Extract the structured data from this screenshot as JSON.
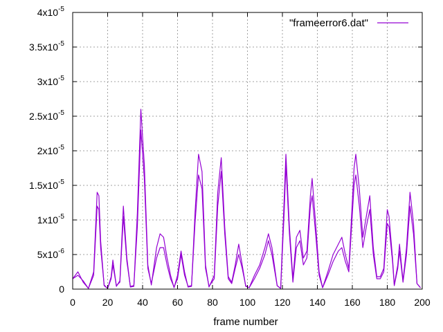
{
  "chart_data": {
    "type": "line",
    "xlabel": "frame number",
    "ylabel": "",
    "xlim": [
      0,
      200
    ],
    "ylim": [
      0,
      4e-05
    ],
    "x_ticks": [
      0,
      20,
      40,
      60,
      80,
      100,
      120,
      140,
      160,
      180,
      200
    ],
    "x_tick_labels": [
      "0",
      "20",
      "40",
      "60",
      "80",
      "100",
      "120",
      "140",
      "160",
      "180",
      "200"
    ],
    "y_ticks": [
      0,
      5e-06,
      1e-05,
      1.5e-05,
      2e-05,
      2.5e-05,
      3e-05,
      3.5e-05,
      4e-05
    ],
    "y_tick_labels": [
      {
        "mant": "0",
        "exp": ""
      },
      {
        "mant": "5x10",
        "exp": "-6"
      },
      {
        "mant": "1x10",
        "exp": "-5"
      },
      {
        "mant": "1.5x10",
        "exp": "-5"
      },
      {
        "mant": "2x10",
        "exp": "-5"
      },
      {
        "mant": "2.5x10",
        "exp": "-5"
      },
      {
        "mant": "3x10",
        "exp": "-5"
      },
      {
        "mant": "3.5x10",
        "exp": "-5"
      },
      {
        "mant": "4x10",
        "exp": "-5"
      }
    ],
    "grid": true,
    "legend_position": "top-right",
    "series": [
      {
        "name": "\"frameerror6.dat\"",
        "color": "#9400d3",
        "points": [
          [
            0,
            1.5e-06
          ],
          [
            3,
            2e-06
          ],
          [
            6,
            1.2e-06
          ],
          [
            9,
            1e-07
          ],
          [
            12,
            2e-06
          ],
          [
            14,
            1.2e-05
          ],
          [
            15,
            1.15e-05
          ],
          [
            16,
            6e-06
          ],
          [
            18,
            6e-07
          ],
          [
            20,
            1e-07
          ],
          [
            22,
            1.5e-06
          ],
          [
            23,
            3.5e-06
          ],
          [
            24,
            2e-06
          ],
          [
            25,
            5e-07
          ],
          [
            27,
            1e-06
          ],
          [
            29,
            1.05e-05
          ],
          [
            31,
            4e-06
          ],
          [
            33,
            4e-07
          ],
          [
            35,
            5e-07
          ],
          [
            37,
            9e-06
          ],
          [
            39,
            2.3e-05
          ],
          [
            41,
            1.6e-05
          ],
          [
            43,
            3e-06
          ],
          [
            45,
            8e-07
          ],
          [
            48,
            4.5e-06
          ],
          [
            50,
            6e-06
          ],
          [
            52,
            6e-06
          ],
          [
            54,
            3.5e-06
          ],
          [
            56,
            1.5e-06
          ],
          [
            58,
            3e-07
          ],
          [
            60,
            1.5e-06
          ],
          [
            62,
            5e-06
          ],
          [
            64,
            2e-06
          ],
          [
            66,
            4e-07
          ],
          [
            68,
            5e-07
          ],
          [
            70,
            9.5e-06
          ],
          [
            72,
            1.65e-05
          ],
          [
            74,
            1.45e-05
          ],
          [
            76,
            3e-06
          ],
          [
            78,
            4e-07
          ],
          [
            81,
            1.5e-06
          ],
          [
            83,
            1.2e-05
          ],
          [
            85,
            1.7e-05
          ],
          [
            87,
            8e-06
          ],
          [
            89,
            1.5e-06
          ],
          [
            91,
            8e-07
          ],
          [
            93,
            3e-06
          ],
          [
            95,
            5e-06
          ],
          [
            97,
            3e-06
          ],
          [
            99,
            5e-07
          ],
          [
            101,
            2e-07
          ],
          [
            104,
            1.5e-06
          ],
          [
            107,
            3e-06
          ],
          [
            110,
            5e-06
          ],
          [
            112,
            7e-06
          ],
          [
            114,
            5e-06
          ],
          [
            117,
            5e-07
          ],
          [
            119,
            1e-07
          ],
          [
            121,
            1.1e-05
          ],
          [
            122,
            1.8e-05
          ],
          [
            124,
            8e-06
          ],
          [
            126,
            1e-06
          ],
          [
            128,
            6e-06
          ],
          [
            130,
            7e-06
          ],
          [
            132,
            3.5e-06
          ],
          [
            134,
            4.5e-06
          ],
          [
            136,
            1.2e-05
          ],
          [
            137,
            1.35e-05
          ],
          [
            139,
            8e-06
          ],
          [
            141,
            2e-06
          ],
          [
            143,
            2e-07
          ],
          [
            146,
            2e-06
          ],
          [
            149,
            4e-06
          ],
          [
            152,
            5.5e-06
          ],
          [
            154,
            6e-06
          ],
          [
            156,
            4e-06
          ],
          [
            158,
            2.5e-06
          ],
          [
            161,
            1.5e-05
          ],
          [
            162,
            1.65e-05
          ],
          [
            164,
            1.2e-05
          ],
          [
            166,
            6e-06
          ],
          [
            168,
            9e-06
          ],
          [
            170,
            1.15e-05
          ],
          [
            172,
            5e-06
          ],
          [
            174,
            1.5e-06
          ],
          [
            176,
            1.5e-06
          ],
          [
            178,
            2.5e-06
          ],
          [
            180,
            9.5e-06
          ],
          [
            181,
            9e-06
          ],
          [
            183,
            4e-06
          ],
          [
            184,
            5e-07
          ],
          [
            186,
            3e-06
          ],
          [
            187,
            5.5e-06
          ],
          [
            189,
            1e-06
          ],
          [
            191,
            5e-06
          ],
          [
            193,
            1.2e-05
          ],
          [
            195,
            8e-06
          ],
          [
            197,
            8e-07
          ],
          [
            199,
            2e-07
          ]
        ]
      },
      {
        "name": "",
        "color": "#9400d3",
        "points": [
          [
            0,
            1.5e-06
          ],
          [
            3,
            2.5e-06
          ],
          [
            6,
            1e-06
          ],
          [
            9,
            1e-07
          ],
          [
            12,
            2.5e-06
          ],
          [
            14,
            1.4e-05
          ],
          [
            15,
            1.35e-05
          ],
          [
            16,
            7e-06
          ],
          [
            18,
            5e-07
          ],
          [
            20,
            1e-07
          ],
          [
            22,
            1.8e-06
          ],
          [
            23,
            4.2e-06
          ],
          [
            24,
            2.3e-06
          ],
          [
            25,
            4e-07
          ],
          [
            27,
            1.2e-06
          ],
          [
            29,
            1.2e-05
          ],
          [
            31,
            4.5e-06
          ],
          [
            33,
            3e-07
          ],
          [
            35,
            4e-07
          ],
          [
            37,
            1.1e-05
          ],
          [
            39,
            2.6e-05
          ],
          [
            41,
            1.8e-05
          ],
          [
            43,
            3.5e-06
          ],
          [
            45,
            6e-07
          ],
          [
            48,
            6e-06
          ],
          [
            50,
            8e-06
          ],
          [
            52,
            7.5e-06
          ],
          [
            54,
            4.5e-06
          ],
          [
            56,
            2e-06
          ],
          [
            58,
            2e-07
          ],
          [
            60,
            2e-06
          ],
          [
            62,
            5.5e-06
          ],
          [
            64,
            2.5e-06
          ],
          [
            66,
            3e-07
          ],
          [
            68,
            4e-07
          ],
          [
            70,
            1.1e-05
          ],
          [
            72,
            1.95e-05
          ],
          [
            74,
            1.7e-05
          ],
          [
            76,
            3.5e-06
          ],
          [
            78,
            3e-07
          ],
          [
            81,
            2e-06
          ],
          [
            83,
            1.4e-05
          ],
          [
            85,
            1.9e-05
          ],
          [
            87,
            9e-06
          ],
          [
            89,
            1.8e-06
          ],
          [
            91,
            1e-06
          ],
          [
            93,
            3.5e-06
          ],
          [
            95,
            6.5e-06
          ],
          [
            97,
            3.5e-06
          ],
          [
            99,
            4e-07
          ],
          [
            101,
            2e-07
          ],
          [
            104,
            2e-06
          ],
          [
            107,
            3.5e-06
          ],
          [
            110,
            6e-06
          ],
          [
            112,
            8e-06
          ],
          [
            114,
            6e-06
          ],
          [
            117,
            5e-07
          ],
          [
            119,
            1e-07
          ],
          [
            121,
            1.3e-05
          ],
          [
            122,
            1.95e-05
          ],
          [
            124,
            9e-06
          ],
          [
            126,
            1.5e-06
          ],
          [
            128,
            7.5e-06
          ],
          [
            130,
            8.5e-06
          ],
          [
            132,
            4.5e-06
          ],
          [
            134,
            5.5e-06
          ],
          [
            136,
            1.35e-05
          ],
          [
            137,
            1.6e-05
          ],
          [
            139,
            9.5e-06
          ],
          [
            141,
            2.5e-06
          ],
          [
            143,
            2e-07
          ],
          [
            146,
            2.5e-06
          ],
          [
            149,
            5e-06
          ],
          [
            152,
            6.5e-06
          ],
          [
            154,
            7.5e-06
          ],
          [
            156,
            5e-06
          ],
          [
            158,
            3e-06
          ],
          [
            161,
            1.75e-05
          ],
          [
            162,
            1.95e-05
          ],
          [
            164,
            1.45e-05
          ],
          [
            166,
            7.5e-06
          ],
          [
            168,
            1.05e-05
          ],
          [
            170,
            1.35e-05
          ],
          [
            172,
            6e-06
          ],
          [
            174,
            1.8e-06
          ],
          [
            176,
            1.8e-06
          ],
          [
            178,
            3e-06
          ],
          [
            180,
            1.15e-05
          ],
          [
            181,
            1.05e-05
          ],
          [
            183,
            4.5e-06
          ],
          [
            184,
            6e-07
          ],
          [
            186,
            3.5e-06
          ],
          [
            187,
            6.5e-06
          ],
          [
            189,
            1.2e-06
          ],
          [
            191,
            6e-06
          ],
          [
            193,
            1.4e-05
          ],
          [
            195,
            9.5e-06
          ],
          [
            197,
            8e-07
          ],
          [
            199,
            2e-07
          ]
        ]
      }
    ]
  }
}
